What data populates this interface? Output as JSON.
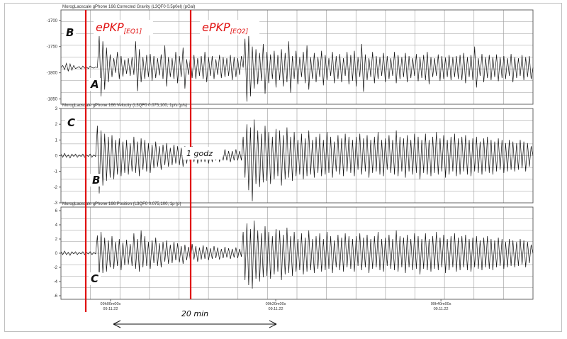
{
  "chart_data": [
    {
      "type": "line",
      "title": "MorogLaoscale gPhone 166:Corrected Gravity (L3QF0 0.5p0el) (pGal)",
      "ylim": [
        -1860,
        -1680
      ],
      "yticks": [
        -1700,
        -1750,
        -1800,
        -1850
      ],
      "series": [
        {
          "values": [
            -1790,
            -1786,
            -1794,
            -1782,
            -1797,
            -1783,
            -1795,
            -1786,
            -1792,
            -1790,
            -1788,
            -1793,
            -1787,
            -1791,
            -1789,
            -1792,
            -1787,
            -1790,
            -1791,
            -1789,
            -1790,
            -1730,
            -1845,
            -1740,
            -1832,
            -1752,
            -1818,
            -1765,
            -1808,
            -1772,
            -1800,
            -1760,
            -1812,
            -1768,
            -1807,
            -1775,
            -1802,
            -1772,
            -1806,
            -1770,
            -1804,
            -1740,
            -1835,
            -1755,
            -1818,
            -1770,
            -1812,
            -1766,
            -1808,
            -1764,
            -1815,
            -1768,
            -1810,
            -1772,
            -1805,
            -1765,
            -1812,
            -1748,
            -1826,
            -1770,
            -1808,
            -1772,
            -1812,
            -1760,
            -1820,
            -1768,
            -1808,
            -1752,
            -1830,
            -1774,
            -1804,
            -1770,
            -1810,
            -1766,
            -1812,
            -1772,
            -1806,
            -1768,
            -1812,
            -1760,
            -1818,
            -1770,
            -1806,
            -1768,
            -1812,
            -1774,
            -1804,
            -1766,
            -1810,
            -1770,
            -1808,
            -1772,
            -1806,
            -1766,
            -1814,
            -1770,
            -1808,
            -1772,
            -1804,
            -1768,
            -1790,
            -1735,
            -1855,
            -1730,
            -1845,
            -1750,
            -1830,
            -1755,
            -1822,
            -1762,
            -1815,
            -1745,
            -1840,
            -1760,
            -1820,
            -1765,
            -1812,
            -1758,
            -1828,
            -1766,
            -1814,
            -1755,
            -1826,
            -1762,
            -1818,
            -1740,
            -1838,
            -1768,
            -1812,
            -1758,
            -1822,
            -1770,
            -1808,
            -1760,
            -1820,
            -1748,
            -1832,
            -1770,
            -1812,
            -1762,
            -1818,
            -1770,
            -1808,
            -1758,
            -1824,
            -1766,
            -1814,
            -1772,
            -1806,
            -1760,
            -1820,
            -1768,
            -1812,
            -1764,
            -1818,
            -1772,
            -1806,
            -1760,
            -1822,
            -1766,
            -1815,
            -1758,
            -1826,
            -1770,
            -1808,
            -1745,
            -1836,
            -1765,
            -1814,
            -1772,
            -1808,
            -1760,
            -1820,
            -1768,
            -1812,
            -1770,
            -1806,
            -1762,
            -1818,
            -1768,
            -1812,
            -1772,
            -1806,
            -1760,
            -1820,
            -1766,
            -1812,
            -1770,
            -1808,
            -1762,
            -1818,
            -1768,
            -1810,
            -1772,
            -1806,
            -1764,
            -1816,
            -1770,
            -1810,
            -1766,
            -1814,
            -1760,
            -1822,
            -1770,
            -1808,
            -1772,
            -1806,
            -1765,
            -1815,
            -1768,
            -1812,
            -1771,
            -1808,
            -1766,
            -1814,
            -1770,
            -1808,
            -1768,
            -1812,
            -1766,
            -1814,
            -1762,
            -1820,
            -1770,
            -1808,
            -1766,
            -1814,
            -1750,
            -1828,
            -1772,
            -1806,
            -1764,
            -1818,
            -1770,
            -1810,
            -1766,
            -1814,
            -1770,
            -1808,
            -1765,
            -1816,
            -1770,
            -1810,
            -1768,
            -1812,
            -1772,
            -1806,
            -1764,
            -1818,
            -1770,
            -1810,
            -1772,
            -1806,
            -1766,
            -1814,
            -1770,
            -1808,
            -1768,
            -1812,
            -1790
          ]
        }
      ]
    },
    {
      "type": "line",
      "title": "MorogLaoscale gPhone 166:Velocity (L3QF0 0.075,100, 1p/s (p/s)",
      "ylim": [
        -3,
        3
      ],
      "yticks": [
        3,
        2,
        1,
        0,
        -1,
        -2,
        -3
      ],
      "series": [
        {
          "values": [
            0.1,
            -0.1,
            0.15,
            -0.1,
            0.05,
            -0.15,
            0.1,
            -0.05,
            0.1,
            -0.1,
            0.05,
            -0.05,
            0.1,
            -0.1,
            0.05,
            -0.05,
            0.1,
            -0.1,
            0.05,
            -0.05,
            1.9,
            -2.4,
            1.6,
            -1.9,
            1.4,
            -1.6,
            1.2,
            -1.4,
            1.3,
            -1.5,
            1.0,
            -1.2,
            1.1,
            -1.3,
            0.9,
            -1.1,
            1.0,
            -1.2,
            0.8,
            -1.0,
            1.2,
            -1.1,
            0.9,
            -1.3,
            1.1,
            -0.9,
            1.0,
            -1.0,
            0.8,
            -1.1,
            0.7,
            -0.8,
            0.9,
            -0.7,
            0.6,
            -0.9,
            0.7,
            -0.6,
            0.8,
            -0.7,
            0.5,
            -0.6,
            0.7,
            -0.5,
            0.6,
            -0.6,
            0.5,
            -0.7,
            0.6,
            -0.5,
            0.4,
            -0.5,
            0.6,
            -0.4,
            0.5,
            -0.5,
            0.4,
            -0.4,
            0.5,
            -0.4,
            0.4,
            -0.5,
            0.3,
            -0.4,
            0.5,
            -0.3,
            0.4,
            -0.4,
            0.3,
            -0.3,
            0.4,
            -0.3,
            0.3,
            -0.4,
            0.3,
            -0.3,
            0.4,
            -0.3,
            0.3,
            -0.3,
            1.2,
            -1.4,
            2.0,
            -2.2,
            1.8,
            -2.9,
            2.3,
            -1.8,
            1.6,
            -2.0,
            1.4,
            -1.7,
            1.9,
            -1.6,
            1.5,
            -1.8,
            1.2,
            -1.5,
            1.7,
            -1.3,
            1.6,
            -1.9,
            1.3,
            -1.5,
            1.8,
            -1.4,
            1.2,
            -1.6,
            1.5,
            -1.3,
            1.0,
            -1.2,
            1.4,
            -1.5,
            1.1,
            -1.3,
            1.6,
            -1.2,
            1.0,
            -1.4,
            1.2,
            -1.1,
            1.4,
            -1.3,
            1.0,
            -1.2,
            1.5,
            -1.1,
            1.2,
            -1.4,
            0.9,
            -1.0,
            1.3,
            -1.2,
            1.1,
            -1.3,
            1.4,
            -1.0,
            1.2,
            -1.1,
            1.0,
            -1.3,
            1.2,
            -0.9,
            1.4,
            -1.2,
            1.1,
            -1.0,
            1.3,
            -1.4,
            1.0,
            -1.1,
            1.2,
            -1.0,
            1.5,
            -1.2,
            1.0,
            -1.3,
            1.1,
            -0.9,
            1.3,
            -1.1,
            1.0,
            -1.2,
            1.6,
            -1.3,
            1.2,
            -1.0,
            1.1,
            -1.4,
            1.3,
            -1.0,
            1.0,
            -1.2,
            1.4,
            -1.1,
            1.2,
            -1.5,
            1.0,
            -1.1,
            1.4,
            -1.2,
            1.0,
            -1.3,
            1.2,
            -1.1,
            1.5,
            -1.2,
            1.1,
            -1.0,
            1.3,
            -1.4,
            1.0,
            -1.2,
            1.2,
            -1.0,
            1.4,
            -1.3,
            1.1,
            -1.2,
            1.2,
            -1.0,
            1.3,
            -1.2,
            1.0,
            -1.3,
            1.1,
            -1.0,
            1.2,
            -1.1,
            0.9,
            -1.2,
            1.1,
            -1.0,
            1.2,
            -1.1,
            1.0,
            -1.2,
            0.9,
            -1.0,
            1.1,
            -0.9,
            1.0,
            -1.1,
            0.8,
            -1.0,
            1.0,
            -0.9,
            0.9,
            -1.0,
            0.8,
            -0.9,
            1.0,
            -0.8,
            0.9,
            -1.0,
            0.8,
            -0.7,
            0.6,
            0.0
          ]
        }
      ]
    },
    {
      "type": "line",
      "title": "MorogLaoscale gPhone 166:Position (L3QF0 0.075,100, 1p (p)",
      "ylim": [
        -6.5,
        6.5
      ],
      "yticks": [
        6,
        4,
        2,
        0,
        -2,
        -4,
        -6
      ],
      "xticks": [
        {
          "time": "09h00m00s",
          "date": "09.11.22"
        },
        {
          "time": "09h20m00s",
          "date": "09.11.22"
        },
        {
          "time": "09h40m00s",
          "date": "09.11.22"
        }
      ],
      "series": [
        {
          "values": [
            0.2,
            -0.2,
            0.3,
            -0.2,
            0.1,
            -0.3,
            0.2,
            -0.1,
            0.2,
            -0.2,
            0.1,
            -0.1,
            0.2,
            -0.2,
            0.1,
            -0.1,
            0.2,
            -0.2,
            0.1,
            -0.1,
            2.5,
            -3.2,
            3.0,
            -2.8,
            2.2,
            -2.6,
            1.8,
            -2.0,
            2.4,
            -2.2,
            1.6,
            -1.8,
            2.0,
            -2.4,
            1.5,
            -1.7,
            1.9,
            -1.6,
            1.3,
            -1.8,
            2.8,
            -2.2,
            2.0,
            -2.6,
            3.2,
            -2.0,
            2.4,
            -1.8,
            1.6,
            -2.2,
            1.8,
            -1.4,
            2.2,
            -1.8,
            1.4,
            -2.0,
            1.6,
            -1.2,
            1.8,
            -1.5,
            1.2,
            -1.4,
            1.6,
            -1.0,
            1.4,
            -1.3,
            1.0,
            -1.5,
            1.2,
            -1.0,
            0.9,
            -1.1,
            1.3,
            -0.9,
            1.0,
            -1.2,
            0.8,
            -0.9,
            1.1,
            -0.8,
            0.9,
            -1.0,
            0.7,
            -0.8,
            1.0,
            -0.7,
            0.8,
            -0.9,
            0.6,
            -0.7,
            0.9,
            -0.6,
            0.7,
            -0.8,
            0.6,
            -0.6,
            0.8,
            -0.7,
            0.6,
            -0.5,
            3.0,
            -3.8,
            4.2,
            -4.5,
            3.4,
            -5.0,
            4.6,
            -3.6,
            3.2,
            -4.0,
            2.8,
            -3.4,
            3.8,
            -3.2,
            3.0,
            -3.6,
            2.4,
            -3.0,
            3.4,
            -2.6,
            3.2,
            -3.8,
            2.6,
            -3.0,
            3.6,
            -2.8,
            2.4,
            -3.2,
            3.0,
            -2.6,
            2.0,
            -2.4,
            2.8,
            -3.0,
            2.2,
            -2.6,
            3.2,
            -2.4,
            2.0,
            -2.8,
            2.4,
            -2.2,
            2.8,
            -2.6,
            2.0,
            -2.4,
            3.0,
            -2.2,
            2.4,
            -2.8,
            1.8,
            -2.0,
            2.6,
            -2.4,
            2.2,
            -2.6,
            2.8,
            -2.0,
            2.4,
            -2.2,
            2.0,
            -2.6,
            2.4,
            -1.8,
            2.8,
            -2.4,
            2.2,
            -2.0,
            2.6,
            -2.8,
            2.0,
            -2.2,
            2.4,
            -2.0,
            3.0,
            -2.4,
            2.0,
            -2.6,
            2.2,
            -1.8,
            2.6,
            -2.2,
            2.0,
            -2.4,
            3.2,
            -2.6,
            2.4,
            -2.0,
            2.2,
            -2.8,
            2.6,
            -2.0,
            2.0,
            -2.4,
            2.8,
            -2.2,
            2.4,
            -3.0,
            2.0,
            -2.2,
            2.8,
            -2.4,
            2.0,
            -2.6,
            2.4,
            -2.2,
            3.0,
            -2.4,
            2.2,
            -2.0,
            2.6,
            -2.8,
            2.0,
            -2.4,
            2.4,
            -2.0,
            2.8,
            -2.6,
            2.2,
            -2.4,
            2.4,
            -2.0,
            2.6,
            -2.4,
            2.0,
            -2.6,
            2.2,
            -2.0,
            2.4,
            -2.2,
            1.8,
            -2.4,
            2.2,
            -2.0,
            2.4,
            -2.2,
            2.0,
            -2.4,
            1.8,
            -2.0,
            2.2,
            -1.8,
            2.0,
            -2.2,
            1.6,
            -2.0,
            2.0,
            -1.8,
            1.8,
            -2.0,
            1.6,
            -1.8,
            2.0,
            -1.6,
            1.8,
            -2.0,
            1.6,
            -1.4,
            1.2,
            0.0
          ]
        }
      ]
    }
  ],
  "annotations": {
    "eq1_label": "ePKP",
    "eq1_sub": "[EQ1]",
    "eq2_label": "ePKP",
    "eq2_sub": "[EQ2]",
    "letters": [
      "B",
      "A",
      "C",
      "B",
      "C"
    ],
    "interval_label": "1 godz",
    "span_label": "20 min"
  },
  "colors": {
    "marker_line": "#e01010",
    "trace": "#111111",
    "grid": "#9a9a9a"
  }
}
